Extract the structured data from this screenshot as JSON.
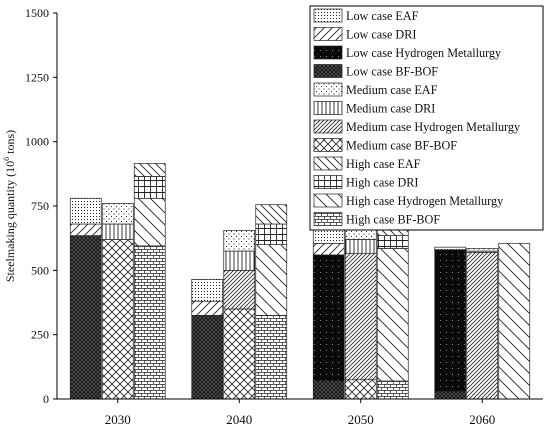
{
  "chart_data": {
    "type": "bar",
    "subtype": "stacked",
    "title": "",
    "xlabel": "",
    "ylabel_main": "Steelmaking quantity (10",
    "ylabel_sup": "6",
    "ylabel_tail": " tons)",
    "categories": [
      "2030",
      "2040",
      "2050",
      "2060"
    ],
    "ylim": [
      0,
      1500
    ],
    "yticks": [
      "0",
      "250",
      "500",
      "750",
      "1000",
      "1250",
      "1500"
    ],
    "scenarios": [
      "Low",
      "Medium",
      "High"
    ],
    "grid": false,
    "legend_position": "top-right",
    "stack_order": [
      "BF-BOF",
      "Hydrogen Metallurgy",
      "DRI",
      "EAF"
    ],
    "series": [
      {
        "name": "Low case EAF",
        "values": [
          100,
          85,
          65,
          10
        ],
        "scenario": "Low",
        "tech": "EAF",
        "pattern": "dots-dense"
      },
      {
        "name": "Low case DRI",
        "values": [
          45,
          55,
          45,
          0
        ],
        "scenario": "Low",
        "tech": "DRI",
        "pattern": "diag-fwd"
      },
      {
        "name": "Low case Hydrogen Metallurgy",
        "values": [
          0,
          0,
          490,
          550
        ],
        "scenario": "Low",
        "tech": "Hydrogen Metallurgy",
        "pattern": "solid-black"
      },
      {
        "name": "Low case BF-BOF",
        "values": [
          635,
          325,
          70,
          30
        ],
        "scenario": "Low",
        "tech": "BF-BOF",
        "pattern": "crosshatch-dark"
      },
      {
        "name": "Medium case EAF",
        "values": [
          80,
          80,
          60,
          10
        ],
        "scenario": "Medium",
        "tech": "EAF",
        "pattern": "dots-sparse"
      },
      {
        "name": "Medium case DRI",
        "values": [
          60,
          75,
          55,
          5
        ],
        "scenario": "Medium",
        "tech": "DRI",
        "pattern": "vertical"
      },
      {
        "name": "Medium case Hydrogen Metallurgy",
        "values": [
          0,
          150,
          490,
          570
        ],
        "scenario": "Medium",
        "tech": "Hydrogen Metallurgy",
        "pattern": "diag-dense"
      },
      {
        "name": "Medium case BF-BOF",
        "values": [
          620,
          350,
          75,
          0
        ],
        "scenario": "Medium",
        "tech": "BF-BOF",
        "pattern": "crosshatch"
      },
      {
        "name": "High case EAF",
        "values": [
          50,
          75,
          55,
          0
        ],
        "scenario": "High",
        "tech": "EAF",
        "pattern": "diag-back"
      },
      {
        "name": "High case DRI",
        "values": [
          85,
          80,
          50,
          0
        ],
        "scenario": "High",
        "tech": "DRI",
        "pattern": "grid"
      },
      {
        "name": "High case Hydrogen Metallurgy",
        "values": [
          185,
          275,
          515,
          605
        ],
        "scenario": "High",
        "tech": "Hydrogen Metallurgy",
        "pattern": "diag-back-wide"
      },
      {
        "name": "High case BF-BOF",
        "values": [
          595,
          325,
          70,
          0
        ],
        "scenario": "High",
        "tech": "BF-BOF",
        "pattern": "bricks"
      }
    ]
  }
}
